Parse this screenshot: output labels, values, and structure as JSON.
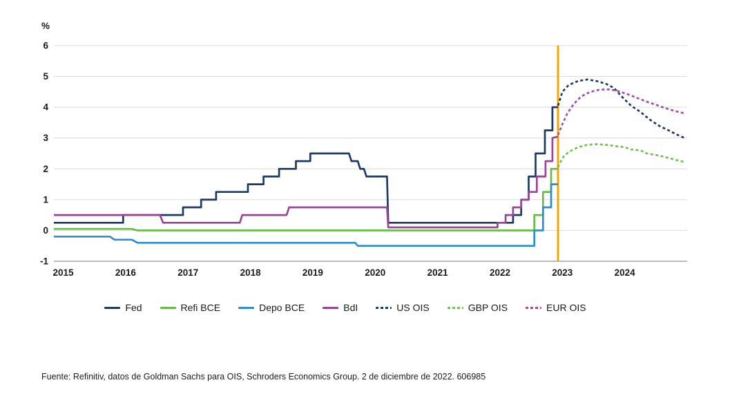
{
  "footer": {
    "source_text": "Fuente: Refinitiv, datos de Goldman Sachs para OIS, Schroders Economics Group. 2 de diciembre de 2022. 606985"
  },
  "colors": {
    "navy": "#1F3864",
    "green_solid": "#65BD45",
    "green_dashed": "#72C14E",
    "blue": "#2E8CCF",
    "purple_solid": "#9B4596",
    "purple_dashed": "#A14FA6",
    "divider_orange": "#F7A600",
    "gridline": "#D9D9D9",
    "axis_line": "#A6A6A6",
    "text": "#1A1A1A"
  },
  "chart_data": {
    "type": "line",
    "title": "",
    "xlabel": "",
    "ylabel": "%",
    "xlim": [
      2014.85,
      2025.0
    ],
    "ylim": [
      -1,
      6
    ],
    "x_ticks": [
      2015,
      2016,
      2017,
      2018,
      2019,
      2020,
      2021,
      2022,
      2023,
      2024
    ],
    "y_ticks": [
      6,
      5,
      4,
      3,
      2,
      1,
      0,
      -1
    ],
    "grid": "horizontal",
    "legend_position": "bottom",
    "forecast_divider": {
      "x": 2022.93,
      "color": "#F7A600"
    },
    "series": [
      {
        "name": "Fed",
        "color": "#1F3864",
        "style": "solid",
        "points": [
          [
            2014.85,
            0.25
          ],
          [
            2015.96,
            0.25
          ],
          [
            2015.96,
            0.5
          ],
          [
            2016.92,
            0.5
          ],
          [
            2016.92,
            0.75
          ],
          [
            2017.21,
            0.75
          ],
          [
            2017.21,
            1.0
          ],
          [
            2017.45,
            1.0
          ],
          [
            2017.45,
            1.25
          ],
          [
            2017.96,
            1.25
          ],
          [
            2017.96,
            1.5
          ],
          [
            2018.21,
            1.5
          ],
          [
            2018.21,
            1.75
          ],
          [
            2018.46,
            1.75
          ],
          [
            2018.46,
            2.0
          ],
          [
            2018.73,
            2.0
          ],
          [
            2018.73,
            2.25
          ],
          [
            2018.96,
            2.25
          ],
          [
            2018.96,
            2.5
          ],
          [
            2019.58,
            2.5
          ],
          [
            2019.62,
            2.25
          ],
          [
            2019.72,
            2.25
          ],
          [
            2019.76,
            2.0
          ],
          [
            2019.82,
            2.0
          ],
          [
            2019.86,
            1.75
          ],
          [
            2020.19,
            1.75
          ],
          [
            2020.21,
            0.25
          ],
          [
            2022.21,
            0.25
          ],
          [
            2022.21,
            0.5
          ],
          [
            2022.34,
            0.5
          ],
          [
            2022.34,
            1.0
          ],
          [
            2022.46,
            1.0
          ],
          [
            2022.46,
            1.75
          ],
          [
            2022.57,
            1.75
          ],
          [
            2022.57,
            2.5
          ],
          [
            2022.72,
            2.5
          ],
          [
            2022.72,
            3.25
          ],
          [
            2022.84,
            3.25
          ],
          [
            2022.84,
            4.0
          ],
          [
            2022.93,
            4.0
          ]
        ]
      },
      {
        "name": "Refi BCE",
        "color": "#65BD45",
        "style": "solid",
        "points": [
          [
            2014.85,
            0.05
          ],
          [
            2016.1,
            0.05
          ],
          [
            2016.19,
            0.0
          ],
          [
            2022.55,
            0.0
          ],
          [
            2022.55,
            0.5
          ],
          [
            2022.69,
            0.5
          ],
          [
            2022.69,
            1.25
          ],
          [
            2022.82,
            1.25
          ],
          [
            2022.82,
            2.0
          ],
          [
            2022.93,
            2.0
          ]
        ]
      },
      {
        "name": "Depo BCE",
        "color": "#2E8CCF",
        "style": "solid",
        "points": [
          [
            2014.85,
            -0.2
          ],
          [
            2015.75,
            -0.2
          ],
          [
            2015.82,
            -0.3
          ],
          [
            2016.1,
            -0.3
          ],
          [
            2016.19,
            -0.4
          ],
          [
            2019.68,
            -0.4
          ],
          [
            2019.72,
            -0.5
          ],
          [
            2022.55,
            -0.5
          ],
          [
            2022.55,
            0.0
          ],
          [
            2022.69,
            0.0
          ],
          [
            2022.69,
            0.75
          ],
          [
            2022.82,
            0.75
          ],
          [
            2022.82,
            1.5
          ],
          [
            2022.93,
            1.5
          ]
        ]
      },
      {
        "name": "BdI",
        "color": "#9B4596",
        "style": "solid",
        "points": [
          [
            2014.85,
            0.5
          ],
          [
            2016.55,
            0.5
          ],
          [
            2016.6,
            0.25
          ],
          [
            2017.83,
            0.25
          ],
          [
            2017.87,
            0.5
          ],
          [
            2018.58,
            0.5
          ],
          [
            2018.62,
            0.75
          ],
          [
            2020.19,
            0.75
          ],
          [
            2020.21,
            0.1
          ],
          [
            2021.96,
            0.1
          ],
          [
            2021.96,
            0.25
          ],
          [
            2022.09,
            0.25
          ],
          [
            2022.09,
            0.5
          ],
          [
            2022.21,
            0.5
          ],
          [
            2022.21,
            0.75
          ],
          [
            2022.34,
            0.75
          ],
          [
            2022.34,
            1.0
          ],
          [
            2022.46,
            1.0
          ],
          [
            2022.46,
            1.25
          ],
          [
            2022.59,
            1.25
          ],
          [
            2022.59,
            1.75
          ],
          [
            2022.73,
            1.75
          ],
          [
            2022.73,
            2.25
          ],
          [
            2022.84,
            2.25
          ],
          [
            2022.84,
            3.0
          ],
          [
            2022.93,
            3.05
          ]
        ]
      },
      {
        "name": "US OIS",
        "color": "#1F3864",
        "style": "dashed",
        "points": [
          [
            2022.93,
            4.05
          ],
          [
            2023.0,
            4.5
          ],
          [
            2023.1,
            4.72
          ],
          [
            2023.25,
            4.85
          ],
          [
            2023.4,
            4.9
          ],
          [
            2023.55,
            4.85
          ],
          [
            2023.7,
            4.76
          ],
          [
            2023.83,
            4.62
          ],
          [
            2023.95,
            4.35
          ],
          [
            2024.1,
            4.05
          ],
          [
            2024.25,
            3.85
          ],
          [
            2024.4,
            3.6
          ],
          [
            2024.55,
            3.4
          ],
          [
            2024.7,
            3.25
          ],
          [
            2024.85,
            3.1
          ],
          [
            2024.96,
            3.0
          ]
        ]
      },
      {
        "name": "GBP OIS",
        "color": "#72C14E",
        "style": "dashed",
        "points": [
          [
            2022.93,
            2.05
          ],
          [
            2023.0,
            2.35
          ],
          [
            2023.1,
            2.55
          ],
          [
            2023.25,
            2.7
          ],
          [
            2023.4,
            2.78
          ],
          [
            2023.55,
            2.8
          ],
          [
            2023.7,
            2.78
          ],
          [
            2023.85,
            2.74
          ],
          [
            2024.0,
            2.7
          ],
          [
            2024.1,
            2.63
          ],
          [
            2024.25,
            2.6
          ],
          [
            2024.35,
            2.5
          ],
          [
            2024.5,
            2.45
          ],
          [
            2024.65,
            2.38
          ],
          [
            2024.8,
            2.3
          ],
          [
            2024.96,
            2.22
          ]
        ]
      },
      {
        "name": "EUR OIS",
        "color": "#A14FA6",
        "style": "dashed",
        "points": [
          [
            2022.93,
            3.1
          ],
          [
            2023.0,
            3.45
          ],
          [
            2023.08,
            3.8
          ],
          [
            2023.18,
            4.1
          ],
          [
            2023.3,
            4.35
          ],
          [
            2023.45,
            4.5
          ],
          [
            2023.6,
            4.57
          ],
          [
            2023.75,
            4.58
          ],
          [
            2023.9,
            4.52
          ],
          [
            2024.05,
            4.42
          ],
          [
            2024.2,
            4.3
          ],
          [
            2024.35,
            4.18
          ],
          [
            2024.5,
            4.08
          ],
          [
            2024.65,
            3.97
          ],
          [
            2024.8,
            3.88
          ],
          [
            2024.96,
            3.8
          ]
        ]
      }
    ]
  }
}
